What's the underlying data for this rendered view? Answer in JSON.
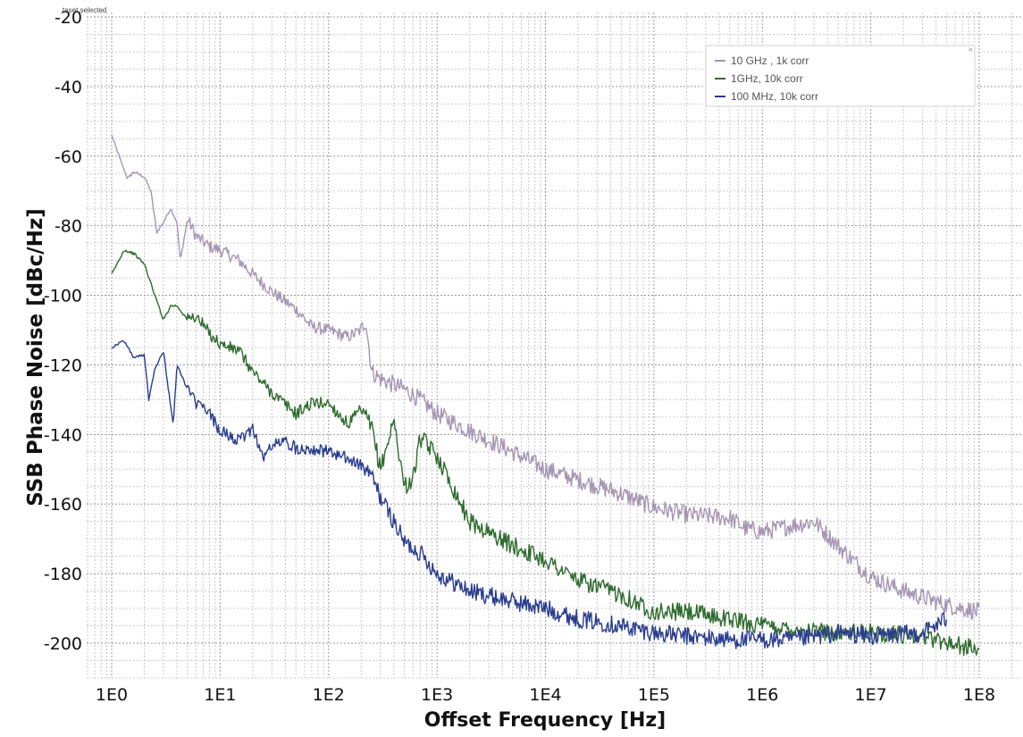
{
  "status_text": "taset selected",
  "chart_data": {
    "type": "line",
    "xscale": "log",
    "xlabel": "Offset Frequency [Hz]",
    "ylabel": "SSB Phase Noise [dBc/Hz]",
    "xlim": [
      1,
      100000000
    ],
    "ylim": [
      -210,
      -20
    ],
    "xticks": [
      "1E0",
      "1E1",
      "1E2",
      "1E3",
      "1E4",
      "1E5",
      "1E6",
      "1E7",
      "1E8"
    ],
    "yticks": [
      "-20",
      "-40",
      "-60",
      "-80",
      "-100",
      "-120",
      "-140",
      "-160",
      "-180",
      "-200"
    ],
    "grid": true,
    "legend_position": "top-right",
    "series": [
      {
        "name": "10 GHz , 1k corr",
        "color": "#a695b3",
        "x": [
          1,
          1.2,
          1.4,
          1.6,
          2,
          2.3,
          2.6,
          3,
          3.5,
          4,
          4.3,
          5,
          6,
          8,
          10,
          15,
          20,
          30,
          50,
          70,
          100,
          150,
          200,
          220,
          250,
          300,
          500,
          700,
          1000,
          2000,
          5000,
          10000,
          20000,
          50000,
          100000,
          200000,
          500000,
          700000,
          1000000,
          2000000,
          3000000,
          5000000,
          10000000,
          20000000,
          50000000,
          100000000
        ],
        "y": [
          -54,
          -61,
          -66.5,
          -64.5,
          -66,
          -70,
          -82,
          -79,
          -75,
          -79,
          -90,
          -78,
          -83,
          -86,
          -87,
          -90,
          -94,
          -99,
          -104,
          -109,
          -110,
          -112,
          -110,
          -107,
          -122,
          -124,
          -127,
          -130,
          -134,
          -139,
          -145,
          -150,
          -153,
          -157,
          -161,
          -163,
          -164,
          -167,
          -168,
          -166,
          -165,
          -172,
          -181,
          -185,
          -189,
          -191
        ]
      },
      {
        "name": "1GHz, 10k corr",
        "color": "#2e6b2e",
        "x": [
          1,
          1.3,
          1.6,
          2,
          2.5,
          3,
          3.5,
          4,
          5,
          6,
          8,
          10,
          15,
          20,
          30,
          50,
          70,
          100,
          150,
          200,
          250,
          300,
          400,
          500,
          600,
          700,
          1000,
          2000,
          5000,
          10000,
          20000,
          50000,
          100000,
          200000,
          500000,
          1000000,
          2000000,
          5000000,
          10000000,
          30000000,
          100000000
        ],
        "y": [
          -94,
          -87,
          -88,
          -91,
          -100,
          -107,
          -103,
          -103,
          -107,
          -106,
          -111,
          -114,
          -116,
          -122,
          -128,
          -134,
          -131,
          -131,
          -137,
          -133,
          -138,
          -150,
          -136,
          -155,
          -153,
          -141,
          -146,
          -165,
          -172,
          -176,
          -182,
          -186,
          -191,
          -191,
          -193,
          -195,
          -196,
          -197,
          -197,
          -198,
          -202
        ]
      },
      {
        "name": "100 MHz, 10k corr",
        "color": "#2a3d8f",
        "x": [
          1,
          1.3,
          1.6,
          2,
          2.2,
          2.5,
          3,
          3.3,
          3.7,
          4,
          5,
          6,
          8,
          10,
          15,
          20,
          25,
          30,
          40,
          50,
          70,
          100,
          150,
          200,
          250,
          300,
          400,
          500,
          700,
          1000,
          2000,
          5000,
          10000,
          20000,
          50000,
          100000,
          200000,
          500000,
          1000000,
          2000000,
          5000000,
          10000000,
          30000000,
          50000000
        ],
        "y": [
          -115,
          -113,
          -118,
          -117,
          -130,
          -121,
          -116,
          -126,
          -137,
          -120,
          -127,
          -131,
          -134,
          -139,
          -142,
          -138,
          -147,
          -143,
          -142,
          -144,
          -144,
          -145,
          -147,
          -149,
          -152,
          -158,
          -165,
          -171,
          -174,
          -180,
          -185,
          -188,
          -190,
          -193,
          -195,
          -197,
          -198,
          -199,
          -199,
          -199,
          -197,
          -198,
          -197,
          -193
        ]
      }
    ]
  }
}
